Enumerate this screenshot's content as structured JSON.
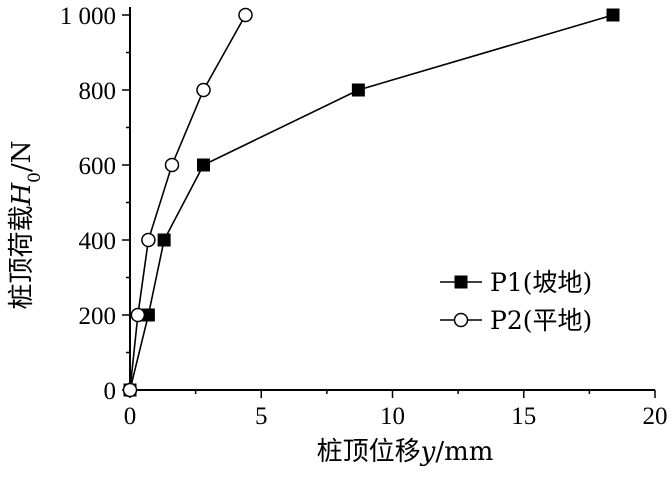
{
  "chart_data": {
    "type": "line",
    "xlabel": {
      "prefix": "桩顶位移",
      "var": "y",
      "unit": "/mm"
    },
    "ylabel": {
      "prefix": "桩顶荷载",
      "var": "H",
      "sub": "0",
      "unit": "/N"
    },
    "xlim": [
      0,
      20
    ],
    "ylim": [
      0,
      1000
    ],
    "xticks": [
      0,
      5,
      10,
      15,
      20
    ],
    "xtick_labels": [
      "0",
      "5",
      "10",
      "15",
      "20"
    ],
    "yticks": [
      0,
      200,
      400,
      600,
      800,
      1000
    ],
    "ytick_labels": [
      "0",
      "200",
      "400",
      "600",
      "800",
      "1 000"
    ],
    "grid": false,
    "legend_position": "right",
    "series": [
      {
        "name": "P1(坡地)",
        "marker": "filled-square",
        "x": [
          0,
          0.7,
          1.3,
          2.8,
          8.7,
          18.4
        ],
        "y": [
          0,
          200,
          400,
          600,
          800,
          1000
        ]
      },
      {
        "name": "P2(平地)",
        "marker": "open-circle",
        "x": [
          0,
          0.3,
          0.7,
          1.6,
          2.8,
          4.4
        ],
        "y": [
          0,
          200,
          400,
          600,
          800,
          1000
        ]
      }
    ]
  }
}
